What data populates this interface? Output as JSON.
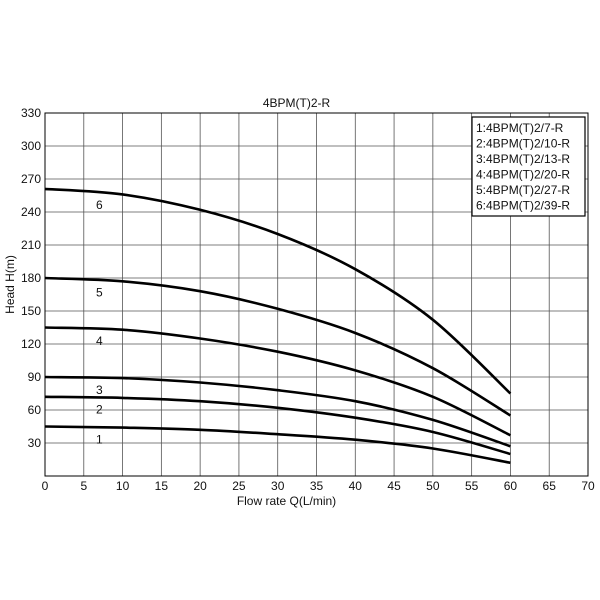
{
  "chart_data": {
    "type": "line",
    "title": "4BPM(T)2-R",
    "xlabel": "Flow rate Q(L/min)",
    "ylabel": "Head H(m)",
    "xlim": [
      0,
      70
    ],
    "ylim": [
      0,
      330
    ],
    "xticks": [
      0,
      5,
      10,
      15,
      20,
      25,
      30,
      35,
      40,
      45,
      50,
      55,
      60,
      65,
      70
    ],
    "yticks": [
      30,
      60,
      90,
      120,
      150,
      180,
      210,
      240,
      270,
      300,
      330
    ],
    "grid": true,
    "legend_position": "top-right",
    "legend": [
      "1:4BPM(T)2/7-R",
      "2:4BPM(T)2/10-R",
      "3:4BPM(T)2/13-R",
      "4:4BPM(T)2/20-R",
      "5:4BPM(T)2/27-R",
      "6:4BPM(T)2/39-R"
    ],
    "series": [
      {
        "name": "1",
        "x": [
          0,
          10,
          20,
          30,
          40,
          50,
          60
        ],
        "y": [
          45,
          44,
          42,
          38,
          33,
          25,
          12
        ]
      },
      {
        "name": "2",
        "x": [
          0,
          10,
          20,
          30,
          40,
          50,
          60
        ],
        "y": [
          72,
          71,
          68,
          62,
          53,
          40,
          20
        ]
      },
      {
        "name": "3",
        "x": [
          0,
          10,
          20,
          30,
          40,
          50,
          60
        ],
        "y": [
          90,
          89,
          85,
          78,
          68,
          51,
          27
        ]
      },
      {
        "name": "4",
        "x": [
          0,
          10,
          20,
          30,
          40,
          50,
          60
        ],
        "y": [
          135,
          133,
          125,
          113,
          96,
          72,
          37
        ]
      },
      {
        "name": "5",
        "x": [
          0,
          10,
          20,
          30,
          40,
          50,
          60
        ],
        "y": [
          180,
          177,
          168,
          152,
          130,
          98,
          55
        ]
      },
      {
        "name": "6",
        "x": [
          0,
          10,
          20,
          30,
          40,
          50,
          60
        ],
        "y": [
          261,
          256,
          242,
          220,
          188,
          142,
          75
        ]
      }
    ]
  }
}
